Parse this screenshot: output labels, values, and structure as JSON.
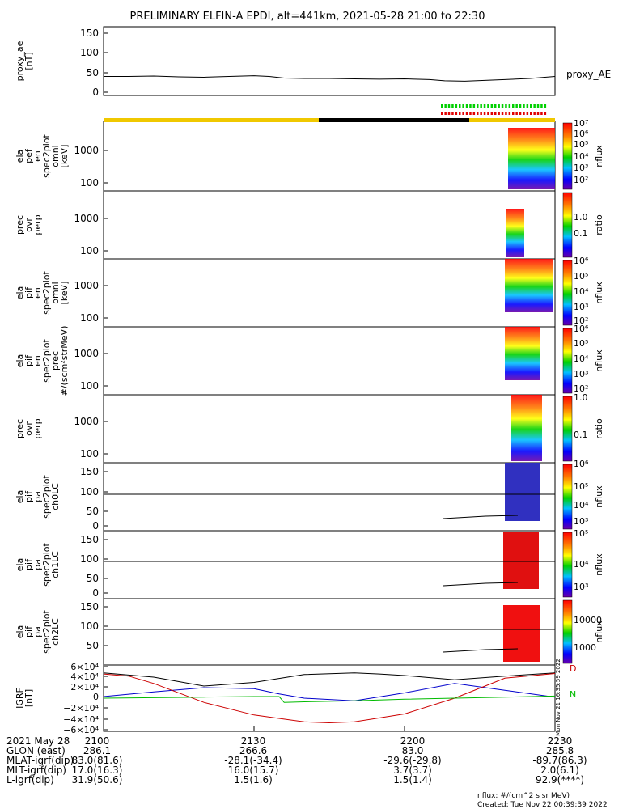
{
  "title": "PRELIMINARY ELFIN-A EPDI, alt=441km, 2021-05-28 21:00 to 22:30",
  "chart_data": [
    {
      "type": "line",
      "panel": "proxy_ae",
      "ylabel": "proxy_ae [nT]",
      "yticks": [
        "150",
        "100",
        "50",
        "0"
      ],
      "ylim": [
        0,
        150
      ],
      "legend": "proxy_AE",
      "series": [
        {
          "name": "proxy_AE",
          "x": [
            0,
            5,
            10,
            15,
            20,
            25,
            30,
            33,
            36,
            40,
            45,
            50,
            55,
            60,
            65,
            68,
            72,
            76,
            80,
            85,
            90
          ],
          "values": [
            40,
            40,
            41,
            39,
            38,
            40,
            42,
            40,
            36,
            35,
            35,
            34,
            33,
            34,
            32,
            29,
            28,
            30,
            32,
            35,
            40
          ]
        }
      ]
    },
    {
      "type": "heatmap",
      "panel": "ela pef en spec2plot omni",
      "ylabel": "ela pef en spec2plot omni [keV]",
      "yticks": [
        "1000",
        "100"
      ],
      "colorbar_ticks": [
        "10⁷",
        "10⁶",
        "10⁵",
        "10⁴",
        "10³",
        "10²"
      ],
      "colorbar_label": "nflux"
    },
    {
      "type": "heatmap",
      "panel": "prec ovr perp",
      "ylabel": "prec ovr perp",
      "yticks": [
        "1000",
        "100"
      ],
      "colorbar_ticks": [
        "1.0",
        "0.1"
      ],
      "colorbar_label": "ratio"
    },
    {
      "type": "heatmap",
      "panel": "ela pif en spec2plot omni",
      "ylabel": "ela pif en spec2plot omni [keV]",
      "yticks": [
        "1000",
        "100"
      ],
      "colorbar_ticks": [
        "10⁶",
        "10⁵",
        "10⁴",
        "10³",
        "10²"
      ],
      "colorbar_label": "nflux"
    },
    {
      "type": "heatmap",
      "panel": "ela pif en spec2plot prec",
      "ylabel": "ela pif en spec2plot prec #/(scm²strMeV)",
      "yticks": [
        "1000",
        "100"
      ],
      "colorbar_ticks": [
        "10⁶",
        "10⁵",
        "10⁴",
        "10³",
        "10²"
      ],
      "colorbar_label": "nflux"
    },
    {
      "type": "heatmap",
      "panel": "prec ovr perp",
      "ylabel": "prec ovr perp",
      "yticks": [
        "1000",
        "100"
      ],
      "colorbar_ticks": [
        "1.0",
        "0.1"
      ],
      "colorbar_label": "ratio"
    },
    {
      "type": "heatmap",
      "panel": "ela pif pa spec2plot ch0LC",
      "ylabel": "ela pif pa spec2plot ch0LC",
      "yticks": [
        "150",
        "100",
        "50",
        "0"
      ],
      "colorbar_ticks": [
        "10⁶",
        "10⁵",
        "10⁴",
        "10³"
      ],
      "colorbar_label": "nflux"
    },
    {
      "type": "heatmap",
      "panel": "ela pif pa spec2plot ch1LC",
      "ylabel": "ela pif pa spec2plot ch1LC",
      "yticks": [
        "150",
        "100",
        "50",
        "0"
      ],
      "colorbar_ticks": [
        "10⁵",
        "10⁴",
        "10³"
      ],
      "colorbar_label": "nflux"
    },
    {
      "type": "heatmap",
      "panel": "ela pif pa spec2plot ch2LC",
      "ylabel": "ela pif pa spec2plot ch2LC",
      "yticks": [
        "150",
        "100",
        "50"
      ],
      "colorbar_ticks": [
        "10000",
        "1000"
      ],
      "colorbar_label": "nflux"
    },
    {
      "type": "line",
      "panel": "IGRF",
      "ylabel": "IGRF [nT]",
      "yticks": [
        "6×10⁴",
        "4×10⁴",
        "2×10⁴",
        "0",
        "−2×10⁴",
        "−4×10⁴",
        "−6×10⁴"
      ],
      "ylim": [
        -60000,
        60000
      ],
      "legend": [
        "D",
        "N"
      ],
      "side_label": "Mon Nov 21 16:35:59 2022",
      "series": [
        {
          "color": "#000000",
          "x": [
            0,
            10,
            20,
            30,
            40,
            50,
            55,
            60,
            70,
            80,
            90
          ],
          "values": [
            48000,
            40000,
            23000,
            30000,
            45000,
            48000,
            46000,
            43000,
            35000,
            42000,
            48000
          ]
        },
        {
          "color": "#0000cc",
          "x": [
            0,
            10,
            20,
            30,
            35,
            40,
            50,
            60,
            70,
            80,
            90
          ],
          "values": [
            3000,
            12000,
            20000,
            18000,
            8000,
            0,
            -5000,
            10000,
            28000,
            15000,
            2000
          ]
        },
        {
          "color": "#cc0000",
          "x": [
            0,
            5,
            10,
            20,
            30,
            40,
            45,
            50,
            60,
            70,
            80,
            90
          ],
          "values": [
            46000,
            42000,
            28000,
            -8000,
            -32000,
            -45000,
            -47000,
            -45000,
            -30000,
            0,
            38000,
            47000
          ]
        },
        {
          "color": "#00bb00",
          "x": [
            0,
            10,
            20,
            30,
            35,
            36,
            40,
            50,
            60,
            70,
            80,
            90
          ],
          "values": [
            0,
            1000,
            2000,
            3000,
            3000,
            -8000,
            -7000,
            -5000,
            -2000,
            0,
            2000,
            4000
          ]
        }
      ]
    }
  ],
  "footer": {
    "rows": [
      [
        "2021 May 28",
        "2100",
        "2130",
        "2200",
        "2230"
      ],
      [
        "GLON (east)",
        "286.1",
        "266.6",
        "83.0",
        "285.8"
      ],
      [
        "MLAT-igrf(dip)",
        "83.0(81.6)",
        "-28.1(-34.4)",
        "-29.6(-29.8)",
        "-89.7(86.3)"
      ],
      [
        "MLT-igrf(dip)",
        "17.0(16.3)",
        "16.0(15.7)",
        "3.7(3.7)",
        "2.0(6.1)"
      ],
      [
        "L-igrf(dip)",
        "31.9(50.6)",
        "1.5(1.6)",
        "1.5(1.4)",
        "92.9(****)"
      ]
    ],
    "note": "nflux: #/(cm^2 s sr MeV)",
    "created": "Created: Tue Nov 22 00:39:39 2022"
  }
}
